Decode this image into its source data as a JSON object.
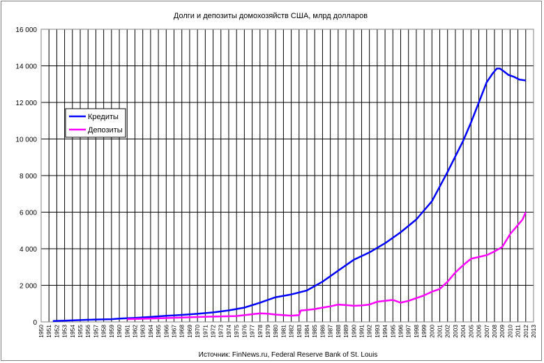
{
  "chart_data": {
    "type": "line",
    "title": "Долги и депозиты домохозяйств США, млрд долларов",
    "source": "Источник: FinNews.ru, Federal Reserve Bank of St. Louis",
    "xlabel": "",
    "ylabel": "",
    "xlim": [
      1950,
      2013
    ],
    "ylim": [
      0,
      16000
    ],
    "grid": true,
    "legend_position": "upper-left",
    "y_ticks": [
      0,
      2000,
      4000,
      6000,
      8000,
      10000,
      12000,
      14000,
      16000
    ],
    "y_tick_labels": [
      "0",
      "2 000",
      "4 000",
      "6 000",
      "8 000",
      "10 000",
      "12 000",
      "14 000",
      "16 000"
    ],
    "x_tick_labels": [
      "1950",
      "1951",
      "1952",
      "1953",
      "1954",
      "1955",
      "1956",
      "1957",
      "1958",
      "1959",
      "1960",
      "1961",
      "1962",
      "1963",
      "1964",
      "1965",
      "1966",
      "1967",
      "1968",
      "1969",
      "1970",
      "1971",
      "1972",
      "1973",
      "1974",
      "1975",
      "1976",
      "1977",
      "1978",
      "1979",
      "1980",
      "1981",
      "1982",
      "1983",
      "1984",
      "1985",
      "1986",
      "1987",
      "1988",
      "1989",
      "1990",
      "1991",
      "1992",
      "1993",
      "1994",
      "1995",
      "1996",
      "1997",
      "1998",
      "1999",
      "2000",
      "2001",
      "2002",
      "2003",
      "2004",
      "2005",
      "2006",
      "2007",
      "2008",
      "2009",
      "2010",
      "2011",
      "2012",
      "2013"
    ],
    "series": [
      {
        "name": "Кредиты",
        "color": "#0000ff",
        "x": [
          1951.5,
          1953,
          1955,
          1957,
          1959,
          1960,
          1962,
          1964,
          1966,
          1968,
          1970,
          1972,
          1974,
          1976,
          1978,
          1979,
          1980,
          1982,
          1984,
          1986,
          1988,
          1990,
          1992,
          1994,
          1996,
          1998,
          2000,
          2002,
          2004,
          2005,
          2006,
          2007,
          2007.8,
          2008.3,
          2008.7,
          2009.2,
          2009.8,
          2010.5,
          2011.2,
          2012
        ],
        "values": [
          50,
          70,
          100,
          130,
          150,
          180,
          220,
          270,
          330,
          380,
          440,
          520,
          630,
          780,
          1050,
          1200,
          1350,
          1500,
          1720,
          2200,
          2800,
          3400,
          3800,
          4300,
          4900,
          5600,
          6600,
          8200,
          9900,
          10900,
          12000,
          13100,
          13600,
          13850,
          13850,
          13700,
          13500,
          13400,
          13250,
          13200
        ]
      },
      {
        "name": "Депозиты",
        "color": "#ff00ff",
        "x": [
          1961,
          1966,
          1971,
          1975,
          1977,
          1978,
          1979,
          1980,
          1982,
          1983,
          1983.2,
          1984,
          1985,
          1986,
          1987,
          1988,
          1989,
          1990,
          1991,
          1992,
          1993,
          1994,
          1995,
          1996,
          1997,
          1998,
          1999,
          2000,
          2001,
          2002,
          2003,
          2004,
          2005,
          2006,
          2007,
          2008,
          2009,
          2010,
          2011,
          2011.6,
          2012
        ],
        "values": [
          150,
          210,
          280,
          320,
          420,
          470,
          450,
          400,
          340,
          370,
          620,
          650,
          700,
          780,
          850,
          950,
          920,
          880,
          900,
          950,
          1100,
          1150,
          1200,
          1050,
          1150,
          1300,
          1450,
          1650,
          1800,
          2200,
          2700,
          3100,
          3450,
          3550,
          3650,
          3850,
          4100,
          4800,
          5300,
          5600,
          6000
        ]
      }
    ]
  }
}
